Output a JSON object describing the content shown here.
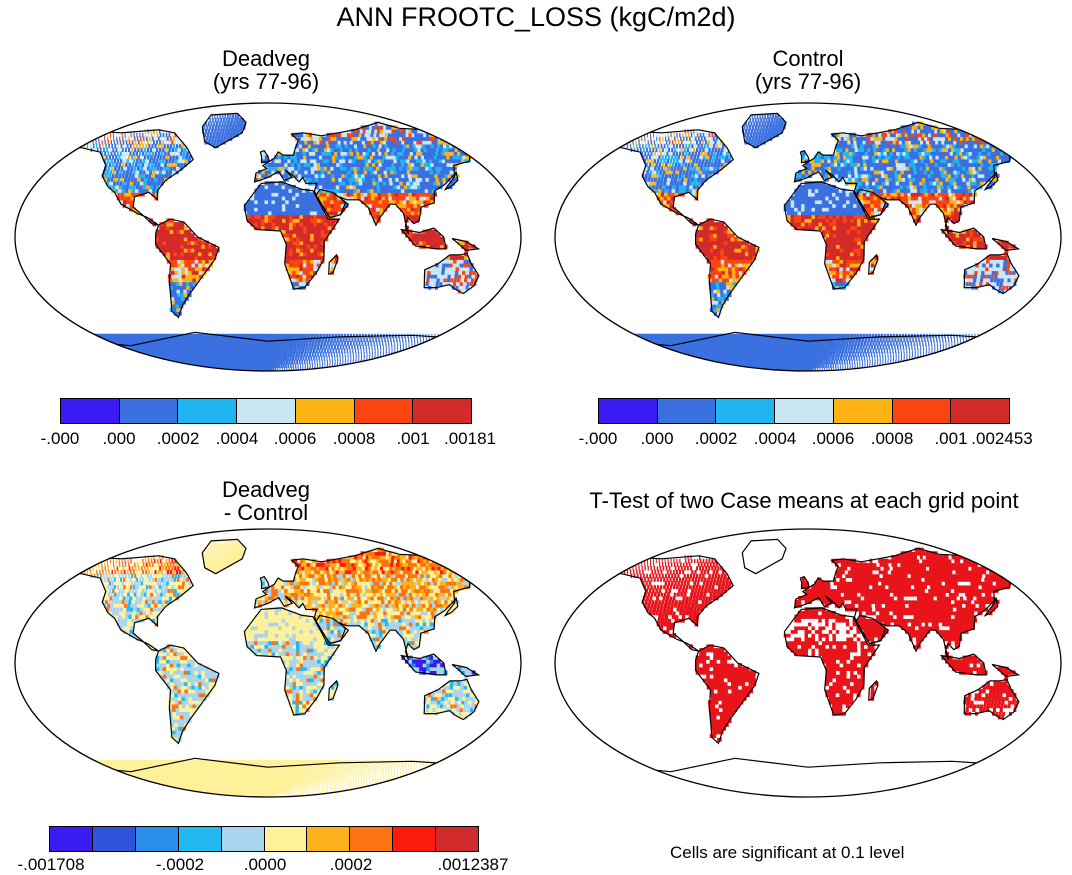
{
  "title": "ANN FROOTC_LOSS (kgC/m2d)",
  "colors": {
    "ocean": "#ffffff",
    "coast": "#000000",
    "abs_scale": [
      "#3a1cf2",
      "#3a70e0",
      "#20b4f0",
      "#c8e6f4",
      "#fdb413",
      "#fb4412",
      "#d42a2a"
    ],
    "diff_scale": [
      "#3a1cf2",
      "#2f54dc",
      "#2a8ee8",
      "#24b8f0",
      "#a8d4ee",
      "#fff09a",
      "#fcb21c",
      "#fc7412",
      "#fc1a0e",
      "#d02a2a"
    ],
    "ttest": [
      "#ffffff",
      "#e8141a"
    ]
  },
  "panels": {
    "deadveg": {
      "title_line1": "Deadveg",
      "title_line2": "(yrs 77-96)",
      "colorbar_labels": [
        "-.000",
        ".000",
        ".0002",
        ".0004",
        ".0006",
        ".0008",
        ".001",
        ".00181"
      ]
    },
    "control": {
      "title_line1": "Control",
      "title_line2": "(yrs 77-96)",
      "colorbar_labels": [
        "-.000",
        ".000",
        ".0002",
        ".0004",
        ".0006",
        ".0008",
        ".001",
        ".002453"
      ]
    },
    "difference": {
      "title_line1": "Deadveg",
      "title_line2": "- Control",
      "colorbar_labels": [
        "-.001708",
        "-.0002",
        ".0000",
        ".0002",
        ".0012387"
      ]
    },
    "ttest": {
      "title": "T-Test of two Case means at each grid point",
      "note": "Cells are significant at 0.1 level"
    }
  }
}
